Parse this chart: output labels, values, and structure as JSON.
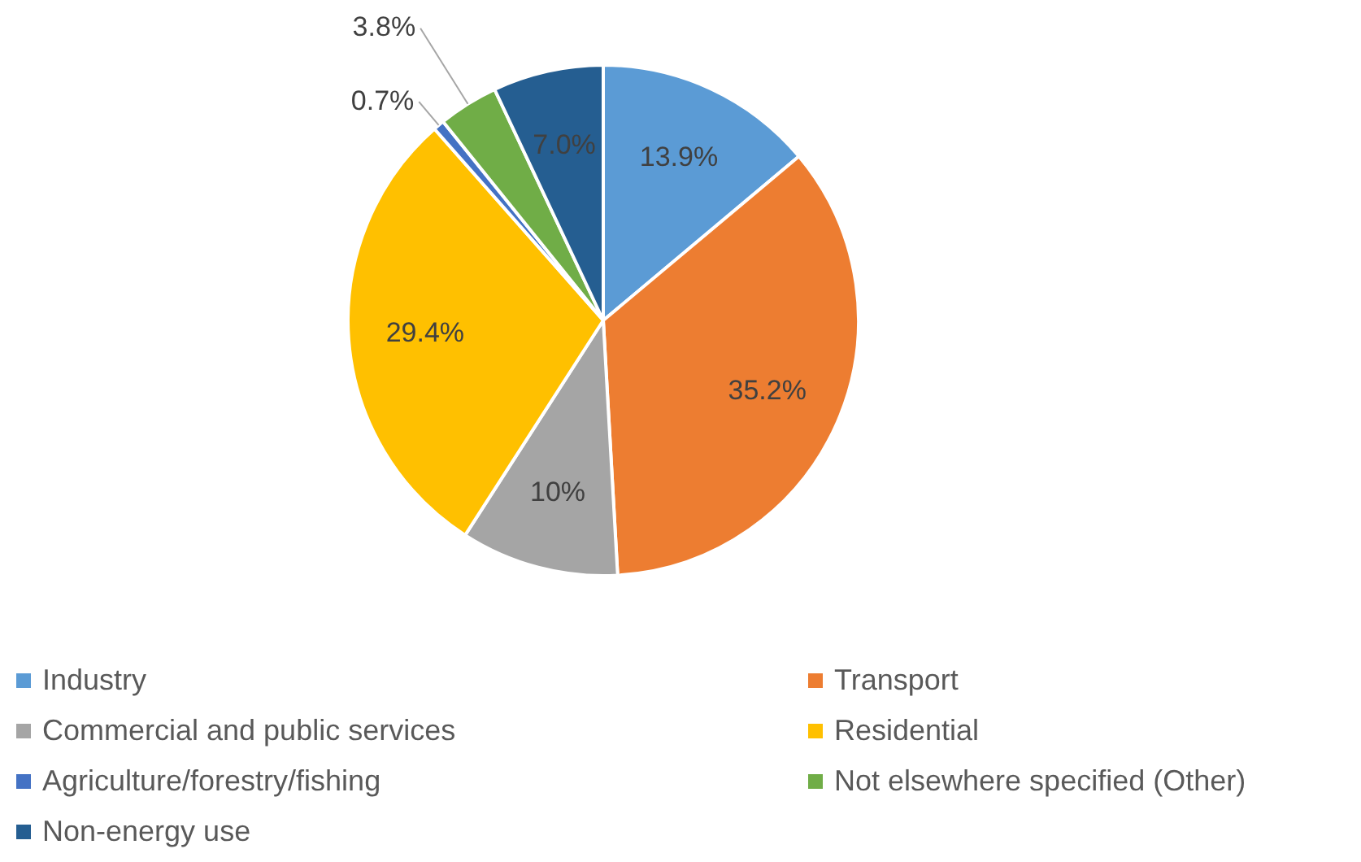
{
  "chart_data": {
    "type": "pie",
    "categories": [
      "Industry",
      "Transport",
      "Commercial and public services",
      "Residential",
      "Agriculture/forestry/fishing",
      "Not elsewhere specified (Other)",
      "Non-energy use"
    ],
    "values": [
      13.9,
      35.2,
      10,
      29.4,
      0.7,
      3.8,
      7.0
    ],
    "value_labels": [
      "13.9%",
      "35.2%",
      "10%",
      "29.4%",
      "0.7%",
      "3.8%",
      "7.0%"
    ],
    "colors": [
      "#5b9bd5",
      "#ed7d31",
      "#a5a5a5",
      "#ffc000",
      "#4472c4",
      "#70ad47",
      "#255e91"
    ],
    "legend": "bottom"
  }
}
